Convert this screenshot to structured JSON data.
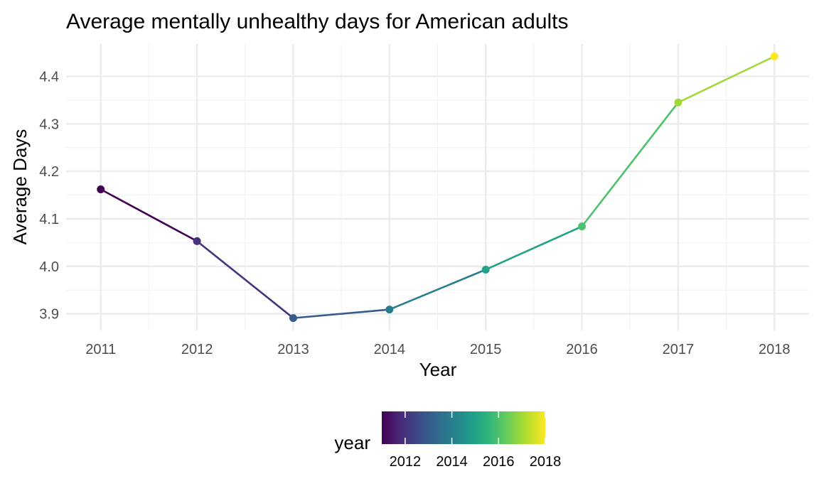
{
  "chart_data": {
    "type": "line",
    "title": "Average mentally unhealthy days for American adults",
    "xlabel": "Year",
    "ylabel": "Average Days",
    "x": [
      2011,
      2012,
      2013,
      2014,
      2015,
      2016,
      2017,
      2018
    ],
    "series": [
      {
        "values": [
          4.162,
          4.053,
          3.891,
          3.909,
          3.993,
          4.084,
          4.345,
          4.442
        ]
      }
    ],
    "xlim": [
      2010.64,
      2018.36
    ],
    "ylim": [
      3.865,
      4.468
    ],
    "x_ticks": [
      2011,
      2012,
      2013,
      2014,
      2015,
      2016,
      2017,
      2018
    ],
    "y_ticks": [
      3.9,
      4.0,
      4.1,
      4.2,
      4.3,
      4.4
    ],
    "y_tick_labels": [
      "3.9",
      "4.0",
      "4.1",
      "4.2",
      "4.3",
      "4.4"
    ],
    "grid": true,
    "color_scale": "viridis",
    "color_by": "year",
    "legend": {
      "title": "year",
      "position": "bottom",
      "range": [
        2011,
        2018
      ],
      "ticks": [
        2012,
        2014,
        2016,
        2018
      ],
      "tick_labels": [
        "2012",
        "2014",
        "2016",
        "2018"
      ]
    },
    "colors": {
      "background": "#ffffff",
      "grid_major": "#ebebeb",
      "grid_minor": "#f3f3f3",
      "tick_text": "#4d4d4d",
      "viridis_stops": [
        "#440154",
        "#482878",
        "#3e4989",
        "#31688e",
        "#26828e",
        "#1f9e89",
        "#35b779",
        "#6ece58",
        "#b5de2b",
        "#fde725"
      ]
    }
  }
}
